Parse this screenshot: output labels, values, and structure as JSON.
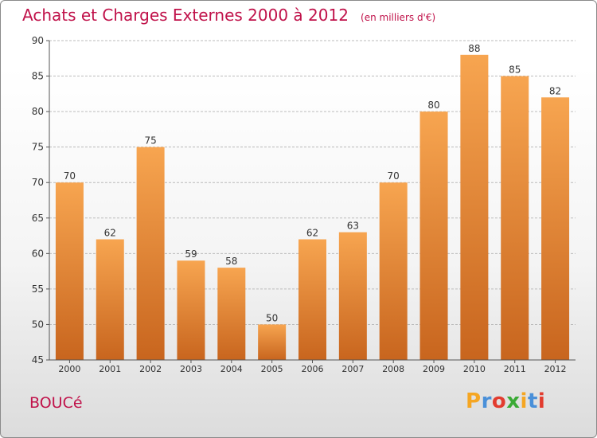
{
  "header": {
    "title": "Achats et Charges Externes 2000 à 2012",
    "unit": "(en milliers d'€)"
  },
  "footer": {
    "commune": "BOUCé",
    "logo_letters": [
      "P",
      "r",
      "o",
      "x",
      "i",
      "t",
      "i"
    ],
    "logo_colors": [
      "#f5a623",
      "#4a90d9",
      "#e23c2f",
      "#3aaa35",
      "#f5a623",
      "#4a90d9",
      "#e23c2f"
    ]
  },
  "colors": {
    "bar_top": "#f7a550",
    "bar_bottom": "#c8651e",
    "grid": "#bbbbbb",
    "axis": "#555555",
    "label": "#333333"
  },
  "chart_data": {
    "type": "bar",
    "title": "Achats et Charges Externes 2000 à 2012",
    "subtitle": "(en milliers d'€)",
    "categories": [
      "2000",
      "2001",
      "2002",
      "2003",
      "2004",
      "2005",
      "2006",
      "2007",
      "2008",
      "2009",
      "2010",
      "2011",
      "2012"
    ],
    "values": [
      70,
      62,
      75,
      59,
      58,
      50,
      62,
      63,
      70,
      80,
      88,
      85,
      82
    ],
    "ylim": [
      45,
      90
    ],
    "yticks": [
      45,
      50,
      55,
      60,
      65,
      70,
      75,
      80,
      85,
      90
    ],
    "grid": true,
    "data_labels": true
  }
}
